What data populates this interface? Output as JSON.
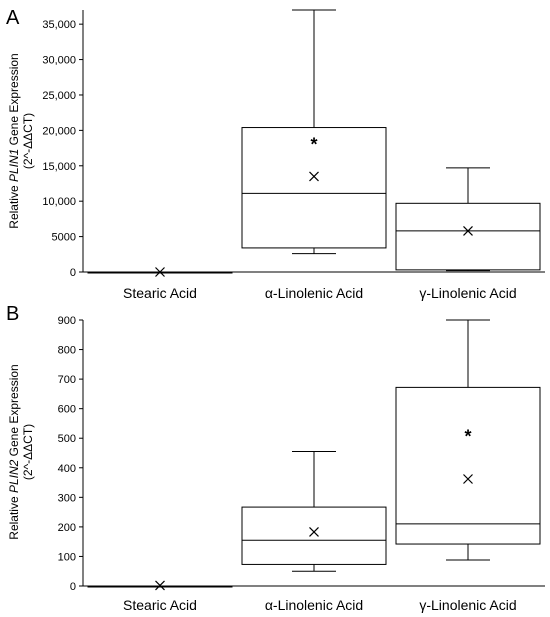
{
  "chart_data": [
    {
      "type": "box",
      "panel": "A",
      "ylabel_parts": [
        "Relative ",
        "PLIN1",
        " Gene Expression"
      ],
      "ylabel_line2": "(2^-ΔΔCT)",
      "ylim": [
        0,
        37000
      ],
      "yticks": [
        0,
        5000,
        10000,
        15000,
        20000,
        25000,
        30000,
        35000
      ],
      "ytick_labels": [
        "0",
        "5000",
        "10,000",
        "15,000",
        "20,000",
        "25,000",
        "30,000",
        "35,000"
      ],
      "categories": [
        "Stearic Acid",
        "α-Linolenic Acid",
        "γ-Linolenic Acid"
      ],
      "boxes": [
        {
          "min": 0,
          "q1": 0,
          "median": 0,
          "q3": 0,
          "max": 0,
          "mean": 0,
          "significant": false
        },
        {
          "min": 2600,
          "q1": 3400,
          "median": 11100,
          "q3": 20400,
          "max": 37000,
          "mean": 13500,
          "significant": true,
          "star_value": 18300
        },
        {
          "min": 200,
          "q1": 300,
          "median": 5800,
          "q3": 9700,
          "max": 14700,
          "mean": 5800,
          "significant": false
        }
      ],
      "significance_marker": "*"
    },
    {
      "type": "box",
      "panel": "B",
      "ylabel_parts": [
        "Relative ",
        "PLIN2",
        " Gene Expression"
      ],
      "ylabel_line2": "(2^-ΔΔCT)",
      "ylim": [
        0,
        900
      ],
      "yticks": [
        0,
        100,
        200,
        300,
        400,
        500,
        600,
        700,
        800,
        900
      ],
      "ytick_labels": [
        "0",
        "100",
        "200",
        "300",
        "400",
        "500",
        "600",
        "700",
        "800",
        "900"
      ],
      "categories": [
        "Stearic Acid",
        "α-Linolenic Acid",
        "γ-Linolenic Acid"
      ],
      "boxes": [
        {
          "min": 0,
          "q1": 0,
          "median": 0,
          "q3": 0,
          "max": 0,
          "mean": 2,
          "significant": false
        },
        {
          "min": 50,
          "q1": 73,
          "median": 155,
          "q3": 267,
          "max": 455,
          "mean": 183,
          "significant": false
        },
        {
          "min": 88,
          "q1": 142,
          "median": 210,
          "q3": 672,
          "max": 900,
          "mean": 362,
          "significant": true,
          "star_value": 512
        }
      ],
      "significance_marker": "*"
    }
  ]
}
